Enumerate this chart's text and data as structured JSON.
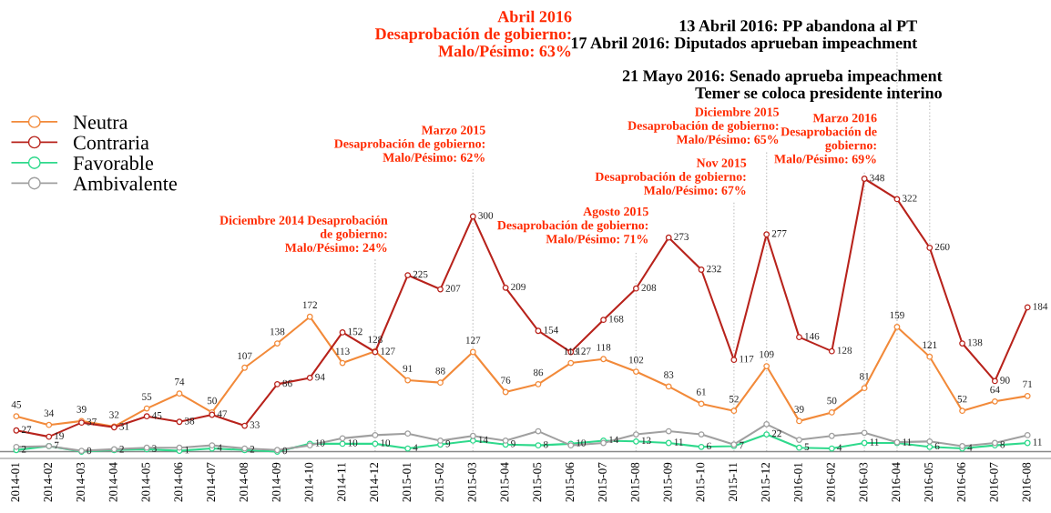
{
  "chart_data": {
    "type": "line",
    "categories": [
      "2014-01",
      "2014-02",
      "2014-03",
      "2014-04",
      "2014-05",
      "2014-06",
      "2014-07",
      "2014-08",
      "2014-09",
      "2014-10",
      "2014-11",
      "2014-12",
      "2015-01",
      "2015-02",
      "2015-03",
      "2015-04",
      "2015-05",
      "2015-06",
      "2015-07",
      "2015-08",
      "2015-09",
      "2015-10",
      "2015-11",
      "2015-12",
      "2016-01",
      "2016-02",
      "2016-03",
      "2016-04",
      "2016-05",
      "2016-06",
      "2016-07",
      "2016-08"
    ],
    "series": [
      {
        "name": "Neutra",
        "color": "#f28a3a",
        "values": [
          45,
          34,
          39,
          32,
          55,
          74,
          50,
          107,
          138,
          172,
          113,
          128,
          91,
          88,
          127,
          76,
          86,
          113,
          118,
          102,
          83,
          61,
          52,
          109,
          39,
          50,
          81,
          159,
          121,
          52,
          64,
          71
        ],
        "value_labels": [
          "45",
          "34",
          "39",
          "32",
          "55",
          "74",
          "50",
          "107",
          "138",
          "172",
          "113",
          "128",
          "91",
          "88",
          "127",
          "76",
          "86",
          "113",
          "118",
          "102",
          "83",
          "61",
          "52",
          "109",
          "39",
          "50",
          "81",
          "159",
          "121",
          "52",
          "64",
          "71"
        ]
      },
      {
        "name": "Contraria",
        "color": "#b8231c",
        "values": [
          27,
          19,
          37,
          31,
          45,
          38,
          47,
          33,
          86,
          94,
          152,
          127,
          225,
          207,
          300,
          209,
          154,
          127,
          168,
          208,
          273,
          232,
          117,
          277,
          146,
          128,
          348,
          322,
          260,
          138,
          90,
          184
        ],
        "value_labels": [
          "27",
          "19",
          "37",
          "31",
          "45",
          "38",
          "47",
          "33",
          "86",
          "94",
          "152",
          "127",
          "225",
          "207",
          "300",
          "209",
          "154",
          "127",
          "168",
          "208",
          "273",
          "232",
          "117",
          "277",
          "146",
          "128",
          "348",
          "322",
          "260",
          "138",
          "90",
          "184"
        ]
      },
      {
        "name": "Favorable",
        "color": "#2fd98c",
        "values": [
          2,
          7,
          0,
          2,
          3,
          1,
          4,
          2,
          0,
          10,
          10,
          10,
          4,
          9,
          14,
          9,
          8,
          10,
          14,
          13,
          11,
          6,
          7,
          22,
          5,
          4,
          11,
          11,
          6,
          4,
          8,
          11
        ],
        "value_labels": [
          "2",
          "7",
          "0",
          "2",
          "3",
          "1",
          "4",
          "2",
          "0",
          "10",
          "10",
          "10",
          "4",
          "9",
          "14",
          "9",
          "8",
          "10",
          "14",
          "13",
          "11",
          "6",
          "7",
          "22",
          "5",
          "4",
          "11",
          "11",
          "6",
          "4",
          "8",
          "11"
        ]
      },
      {
        "name": "Ambivalente",
        "color": "#a0a0a0",
        "values": [
          6,
          7,
          1,
          3,
          5,
          5,
          8,
          4,
          2,
          8,
          17,
          21,
          23,
          14,
          20,
          14,
          26,
          8,
          11,
          22,
          26,
          22,
          9,
          35,
          15,
          20,
          24,
          12,
          13,
          7,
          11,
          21
        ]
      }
    ],
    "tick_labels": "x",
    "grid": false,
    "legend": "top left",
    "marker": "circle",
    "line_style": "solid",
    "ref_lines": [
      {
        "axis": "x",
        "value": "2014-12",
        "color": "#c8c8c8",
        "line_style": "dotted"
      },
      {
        "axis": "x",
        "value": "2015-03",
        "color": "#c8c8c8",
        "line_style": "dotted"
      },
      {
        "axis": "x",
        "value": "2015-08",
        "color": "#c8c8c8",
        "line_style": "dotted"
      },
      {
        "axis": "x",
        "value": "2015-11",
        "color": "#c8c8c8",
        "line_style": "dotted"
      },
      {
        "axis": "x",
        "value": "2015-12",
        "color": "#c8c8c8",
        "line_style": "dotted"
      },
      {
        "axis": "x",
        "value": "2016-03",
        "color": "#c8c8c8",
        "line_style": "dotted"
      },
      {
        "axis": "x",
        "value": "2016-04",
        "color": "#c8c8c8",
        "line_style": "dotted",
        "label": "13 Abril 2016: PP abandona al PT\n17 Abril 2016: Diputados aprueban impeachment"
      },
      {
        "axis": "x",
        "value": "2016-05",
        "color": "#c8c8c8",
        "line_style": "dotted",
        "label": "21 Mayo 2016: Senado aprueba impeachment\nTemer se coloca presidente interino"
      }
    ],
    "annotations": [
      {
        "text": "Diciembre 2014 Desaprobación\nde gobierno:\nMalo/Pésimo: 24%",
        "x": "2014-12",
        "y": 245
      },
      {
        "text": "Marzo 2015\nDesaprobación de gobierno:\nMalo/Pésimo: 62%",
        "x": "2015-03",
        "y": 360
      },
      {
        "text": "Agosto 2015\nDesaprobación de gobierno:\nMalo/Pésimo: 71%",
        "x": "2015-08",
        "y": 256
      },
      {
        "text": "Nov 2015\nDesaprobación de gobierno:\nMalo/Pésimo: 67%",
        "x": "2015-11",
        "y": 318
      },
      {
        "text": "Diciembre 2015\nDesaprobación de gobierno:\nMalo/Pésimo: 65%",
        "x": "2015-12",
        "y": 383
      },
      {
        "text": "Marzo 2016\nDesaprobación de\ngobierno:\nMalo/Pésimo: 69%",
        "x": "2016-03",
        "y": 358
      },
      "Abril 2016\nDesaprobación de gobierno:\nMalo/Pésimo: 63%"
    ]
  }
}
